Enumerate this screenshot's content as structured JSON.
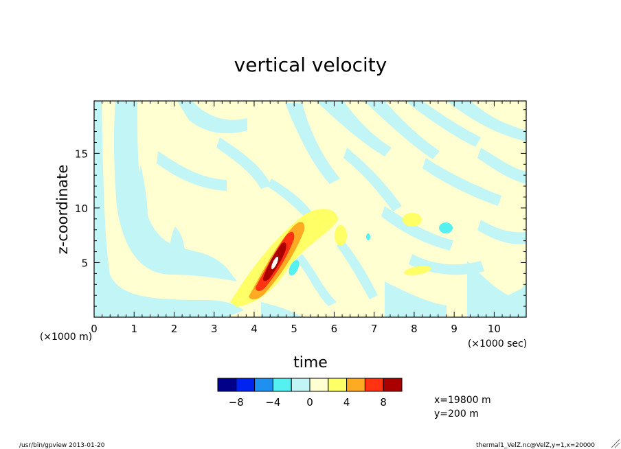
{
  "chart_data": {
    "type": "heatmap",
    "title": "vertical velocity",
    "xlabel": "time",
    "xunits": "(×1000 sec)",
    "ylabel": "z-coordinate",
    "yunits": "(×1000 m)",
    "xlim": [
      0,
      10.8
    ],
    "ylim": [
      0,
      19.8
    ],
    "x_ticks": [
      "0",
      "1",
      "2",
      "3",
      "4",
      "5",
      "6",
      "7",
      "8",
      "9",
      "10"
    ],
    "y_ticks": [
      "5",
      "10",
      "15"
    ],
    "colorbar": {
      "levels": [
        -10,
        -8,
        -6,
        -4,
        -2,
        0,
        2,
        4,
        6,
        8,
        10
      ],
      "tick_labels": [
        "-8",
        "-4",
        "0",
        "4",
        "8"
      ],
      "colors": [
        "#000088",
        "#0022ee",
        "#1e90f0",
        "#55f0f0",
        "#c2f5f5",
        "#ffffd2",
        "#ffff66",
        "#ffaa22",
        "#ff3311",
        "#aa0000"
      ]
    },
    "annotations": [
      "x=19800 m",
      "y=200 m"
    ],
    "features": [
      {
        "kind": "updraft_core",
        "t_center": 4.5,
        "z_center": 4.8,
        "w_max": 10
      }
    ]
  },
  "footer": {
    "left": "/usr/bin/gpview  2013-01-20",
    "right": "thermal1_VelZ.nc@VelZ,y=1,x=20000"
  }
}
